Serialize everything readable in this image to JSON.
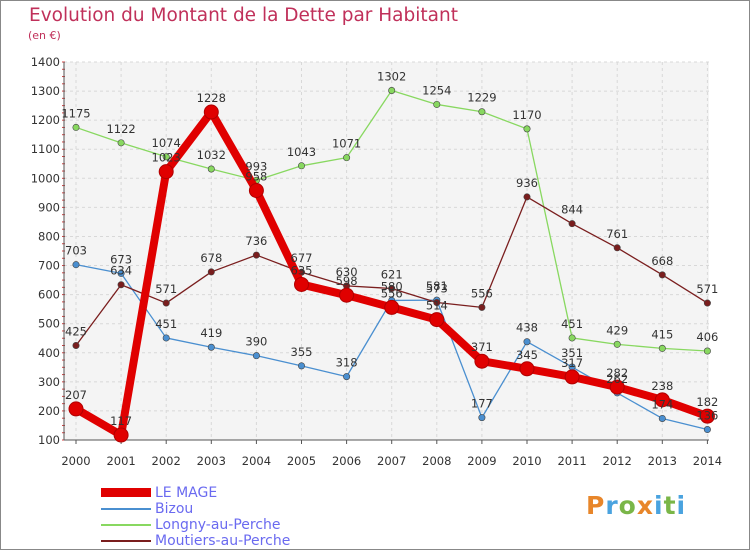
{
  "header": {
    "title": "Evolution du Montant de la Dette par Habitant",
    "unit": "(en €)"
  },
  "chart_data": {
    "type": "line",
    "x": [
      "2000",
      "2001",
      "2002",
      "2003",
      "2004",
      "2005",
      "2006",
      "2007",
      "2008",
      "2009",
      "2010",
      "2011",
      "2012",
      "2013",
      "2014"
    ],
    "ylim": [
      100,
      1400
    ],
    "yticks": [
      100,
      200,
      300,
      400,
      500,
      600,
      700,
      800,
      900,
      1000,
      1100,
      1200,
      1300,
      1400
    ],
    "grid": true,
    "series": [
      {
        "name": "LE MAGE",
        "color": "#e00000",
        "values": [
          207,
          117,
          1023,
          1228,
          958,
          635,
          598,
          556,
          514,
          371,
          345,
          317,
          282,
          238,
          182
        ],
        "labels": [
          "207",
          "117",
          "1023",
          "1228",
          "958",
          "635",
          "598",
          "556",
          "514",
          "371",
          "345",
          "317",
          "282",
          "238",
          "182"
        ]
      },
      {
        "name": "Bizou",
        "color": "#4a8fd0",
        "values": [
          703,
          673,
          451,
          419,
          390,
          355,
          318,
          580,
          581,
          177,
          438,
          351,
          262,
          174,
          136
        ],
        "labels": [
          "703",
          "673",
          "451",
          "419",
          "390",
          "355",
          "318",
          "580",
          "581",
          "177",
          "438",
          "351",
          "262",
          "174",
          "136"
        ]
      },
      {
        "name": "Longny-au-Perche",
        "color": "#88d860",
        "values": [
          1175,
          1122,
          1074,
          1032,
          993,
          1043,
          1071,
          1302,
          1254,
          1229,
          1170,
          451,
          429,
          415,
          406
        ],
        "labels": [
          "1175",
          "1122",
          "1074",
          "1032",
          "993",
          "1043",
          "1071",
          "1302",
          "1254",
          "1229",
          "1170",
          "451",
          "429",
          "415",
          "406"
        ]
      },
      {
        "name": "Moutiers-au-Perche",
        "color": "#7a1e1e",
        "values": [
          425,
          634,
          571,
          678,
          736,
          677,
          630,
          621,
          573,
          556,
          936,
          844,
          761,
          668,
          571
        ],
        "labels": [
          "425",
          "634",
          "571",
          "678",
          "736",
          "677",
          "630",
          "621",
          "573",
          "556",
          "936",
          "844",
          "761",
          "668",
          "571"
        ]
      }
    ]
  },
  "legend": {
    "items": [
      {
        "label": "LE MAGE",
        "color": "#e00000"
      },
      {
        "label": "Bizou",
        "color": "#4a8fd0"
      },
      {
        "label": "Longny-au-Perche",
        "color": "#88d860"
      },
      {
        "label": "Moutiers-au-Perche",
        "color": "#7a1e1e"
      }
    ]
  },
  "logo": {
    "p": "P",
    "r": "r",
    "o": "o",
    "x": "x",
    "i": "i",
    "t": "t",
    "i2": "i"
  }
}
